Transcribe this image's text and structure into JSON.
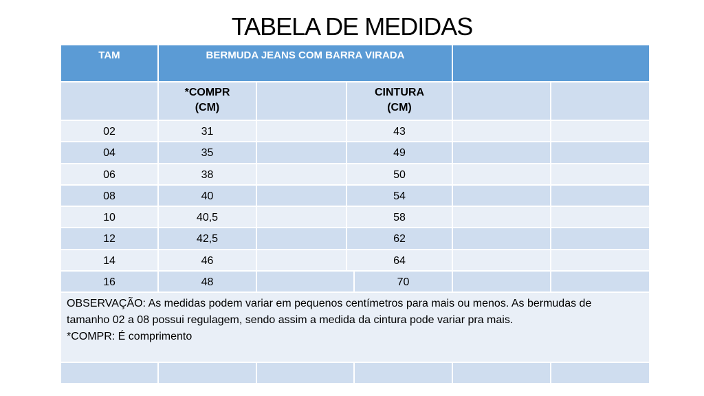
{
  "title": "TABELA DE MEDIDAS",
  "header": {
    "tam": "TAM",
    "product": "BERMUDA JEANS  COM  BARRA VIRADA"
  },
  "subheader": {
    "compr_line1": "*COMPR",
    "compr_line2": "(CM)",
    "cintura_line1": "CINTURA",
    "cintura_line2": "(CM)"
  },
  "rows": [
    {
      "tam": "02",
      "compr": "31",
      "cintura": "43"
    },
    {
      "tam": "04",
      "compr": "35",
      "cintura": "49"
    },
    {
      "tam": "06",
      "compr": "38",
      "cintura": "50"
    },
    {
      "tam": "08",
      "compr": "40",
      "cintura": "54"
    },
    {
      "tam": "10",
      "compr": "40,5",
      "cintura": "58"
    },
    {
      "tam": "12",
      "compr": "42,5",
      "cintura": "62"
    },
    {
      "tam": "14",
      "compr": "46",
      "cintura": "64"
    },
    {
      "tam": "16",
      "compr": "48",
      "cintura": "70"
    }
  ],
  "note": {
    "line1": "OBSERVAÇÃO: As medidas podem variar em pequenos centímetros para mais ou menos. As bermudas de",
    "line2": "tamanho 02 a 08 possui regulagem, sendo assim a medida da cintura pode variar pra mais.",
    "line3": "*COMPR: É comprimento"
  },
  "colors": {
    "header": "#5b9bd5",
    "band_dark": "#cfddef",
    "band_light": "#e9eff7"
  }
}
